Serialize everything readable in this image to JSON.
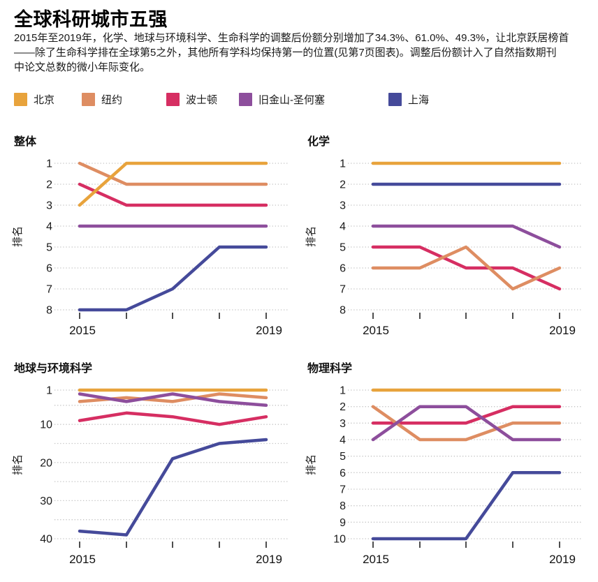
{
  "header": {
    "title": "全球科研城市五强",
    "description_lines": [
      "2015年至2019年，化学、地球与环境科学、生命科学的调整后份额分别增加了34.3%、61.0%、49.3%，让北京跃居榜首",
      "——除了生命科学排在全球第5之外，其他所有学科均保持第一的位置(见第7页图表)。调整后份额计入了自然指数期刊",
      "中论文总数的微小年际变化。"
    ]
  },
  "legend": {
    "items": [
      {
        "label": "北京",
        "color": "#E8A33C"
      },
      {
        "label": "纽约",
        "color": "#DE8D62"
      },
      {
        "label": "波士顿",
        "color": "#D62E62"
      },
      {
        "label": "旧金山-圣何塞",
        "color": "#8D4E9C"
      },
      {
        "label": "上海",
        "color": "#454A9A"
      }
    ]
  },
  "chart_data": [
    {
      "type": "line",
      "title": "整体",
      "ylabel": "排名",
      "x": [
        2015,
        2016,
        2017,
        2018,
        2019
      ],
      "x_tick_labels": [
        "2015",
        "2019"
      ],
      "y_axis": {
        "min": 1,
        "max": 8,
        "inverted": true,
        "labeled_ticks": [
          1,
          2,
          3,
          4,
          5,
          6,
          7,
          8
        ],
        "grid_ticks": [
          1,
          2,
          3,
          4,
          5,
          6,
          7,
          8
        ]
      },
      "series": [
        {
          "city": "波士顿",
          "ranks": [
            2,
            3,
            3,
            3,
            3
          ]
        },
        {
          "city": "纽约",
          "ranks": [
            1,
            2,
            2,
            2,
            2
          ]
        },
        {
          "city": "旧金山-圣何塞",
          "ranks": [
            4,
            4,
            4,
            4,
            4
          ]
        },
        {
          "city": "上海",
          "ranks": [
            8,
            8,
            7,
            5,
            5
          ]
        },
        {
          "city": "北京",
          "ranks": [
            3,
            1,
            1,
            1,
            1
          ]
        }
      ]
    },
    {
      "type": "line",
      "title": "化学",
      "ylabel": "排名",
      "x": [
        2015,
        2016,
        2017,
        2018,
        2019
      ],
      "x_tick_labels": [
        "2015",
        "2019"
      ],
      "y_axis": {
        "min": 1,
        "max": 8,
        "inverted": true,
        "labeled_ticks": [
          1,
          2,
          3,
          4,
          5,
          6,
          7,
          8
        ],
        "grid_ticks": [
          1,
          2,
          3,
          4,
          5,
          6,
          7,
          8
        ]
      },
      "series": [
        {
          "city": "波士顿",
          "ranks": [
            5,
            5,
            6,
            6,
            7
          ]
        },
        {
          "city": "纽约",
          "ranks": [
            6,
            6,
            5,
            7,
            6
          ]
        },
        {
          "city": "旧金山-圣何塞",
          "ranks": [
            4,
            4,
            4,
            4,
            5
          ]
        },
        {
          "city": "上海",
          "ranks": [
            2,
            2,
            2,
            2,
            2
          ]
        },
        {
          "city": "北京",
          "ranks": [
            1,
            1,
            1,
            1,
            1
          ]
        }
      ]
    },
    {
      "type": "line",
      "title": "地球与环境科学",
      "ylabel": "排名",
      "x": [
        2015,
        2016,
        2017,
        2018,
        2019
      ],
      "x_tick_labels": [
        "2015",
        "2019"
      ],
      "y_axis": {
        "min": 1,
        "max": 40,
        "inverted": true,
        "labeled_ticks": [
          1,
          10,
          20,
          30,
          40
        ],
        "grid_ticks": [
          1,
          5,
          10,
          15,
          20,
          25,
          30,
          35,
          40
        ]
      },
      "series": [
        {
          "city": "波士顿",
          "ranks": [
            9,
            7,
            8,
            10,
            8
          ]
        },
        {
          "city": "纽约",
          "ranks": [
            4,
            3,
            4,
            2,
            3
          ]
        },
        {
          "city": "旧金山-圣何塞",
          "ranks": [
            2,
            4,
            2,
            4,
            5
          ]
        },
        {
          "city": "上海",
          "ranks": [
            38,
            39,
            19,
            15,
            14
          ]
        },
        {
          "city": "北京",
          "ranks": [
            1,
            1,
            1,
            1,
            1
          ]
        }
      ]
    },
    {
      "type": "line",
      "title": "物理科学",
      "ylabel": "排名",
      "x": [
        2015,
        2016,
        2017,
        2018,
        2019
      ],
      "x_tick_labels": [
        "2015",
        "2019"
      ],
      "y_axis": {
        "min": 1,
        "max": 10,
        "inverted": true,
        "labeled_ticks": [
          1,
          2,
          3,
          4,
          5,
          6,
          7,
          8,
          9,
          10
        ],
        "grid_ticks": [
          1,
          2,
          3,
          4,
          5,
          6,
          7,
          8,
          9,
          10
        ]
      },
      "series": [
        {
          "city": "波士顿",
          "ranks": [
            3,
            3,
            3,
            2,
            2
          ]
        },
        {
          "city": "纽约",
          "ranks": [
            2,
            4,
            4,
            3,
            3
          ]
        },
        {
          "city": "旧金山-圣何塞",
          "ranks": [
            4,
            2,
            2,
            4,
            4
          ]
        },
        {
          "city": "上海",
          "ranks": [
            10,
            10,
            10,
            6,
            6
          ]
        },
        {
          "city": "北京",
          "ranks": [
            1,
            1,
            1,
            1,
            1
          ]
        }
      ]
    }
  ]
}
